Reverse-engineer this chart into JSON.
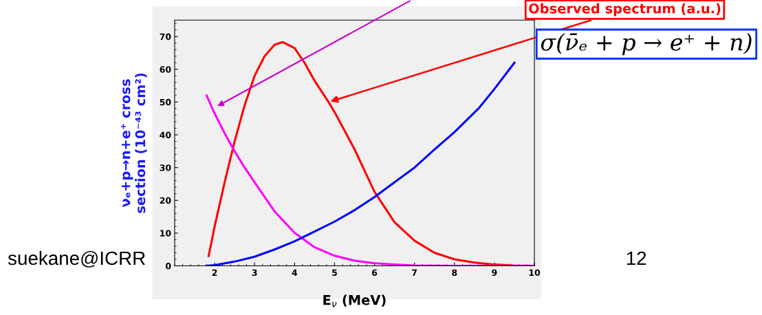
{
  "chart_data": {
    "type": "line",
    "xlabel": "E$_{ν}$ (MeV)",
    "ylabel": "νₑ+p→n+e⁺ cross\nsection (10⁻⁴³ cm²)",
    "xlim": [
      1,
      10
    ],
    "ylim": [
      0,
      75
    ],
    "xticks": [
      2,
      3,
      4,
      5,
      6,
      7,
      8,
      9,
      10
    ],
    "yticks": [
      0,
      10,
      20,
      30,
      40,
      50,
      60,
      70
    ],
    "grid": false,
    "legend": false,
    "marker": "none",
    "line_style": "solid",
    "series": [
      {
        "color": "#ff0000",
        "x": [
          1.85,
          2.0,
          2.25,
          2.5,
          2.75,
          3.0,
          3.25,
          3.5,
          3.7,
          4.0,
          4.25,
          4.5,
          4.85,
          5.0,
          5.5,
          6.0,
          6.5,
          7.0,
          7.5,
          8.0,
          8.5,
          9.0,
          9.5,
          10.0
        ],
        "values": [
          3,
          12,
          25.5,
          38,
          49,
          58,
          64,
          67.5,
          68.3,
          66.5,
          62,
          56.5,
          50,
          47,
          35.6,
          22.6,
          13.3,
          7.7,
          4,
          2,
          1,
          0.4,
          0.1,
          0
        ]
      },
      {
        "color": "#ff00ff",
        "x": [
          1.8,
          2.0,
          2.25,
          2.45,
          2.75,
          3.0,
          3.5,
          4.0,
          4.25,
          4.5,
          5.0,
          5.5,
          6.0,
          6.5,
          7.0,
          8.0,
          9.0,
          10.0
        ],
        "values": [
          52,
          46.5,
          40.5,
          36,
          30,
          25.5,
          16.6,
          10.1,
          7.9,
          5.7,
          3.1,
          1.6,
          0.8,
          0.4,
          0.1,
          0,
          0,
          0
        ]
      },
      {
        "color": "#0000ff",
        "x": [
          1.8,
          2.0,
          2.5,
          3.0,
          3.5,
          4.0,
          4.5,
          5.0,
          5.5,
          6.0,
          6.5,
          7.0,
          7.5,
          8.0,
          8.6,
          9.0,
          9.5
        ],
        "values": [
          0,
          0.2,
          1.3,
          2.8,
          5,
          7.5,
          10.5,
          13.5,
          17,
          21,
          25.5,
          30,
          35.5,
          40.8,
          48,
          54,
          62
        ]
      }
    ],
    "annotations": [
      {
        "text": "Observed spectrum (a.u.)",
        "x": 4.85,
        "y": 50
      },
      "σ(ν̄ₑ + p → e⁺ + n)",
      "suekane@ICRR",
      "12"
    ]
  }
}
